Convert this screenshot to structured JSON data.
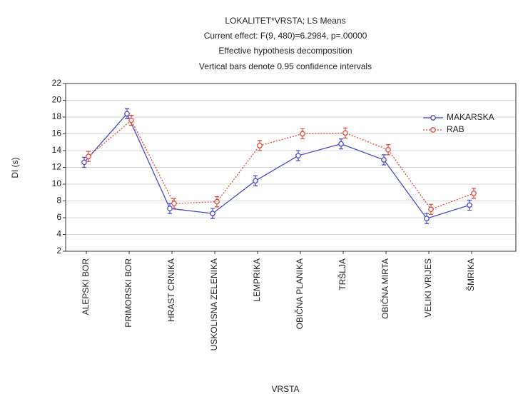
{
  "chart_data": {
    "type": "line",
    "title": "LOKALITET*VRSTA; LS Means",
    "subtitle": [
      "Current effect: F(9, 480)=6.2984, p=.00000",
      "Effective hypothesis decomposition",
      "Vertical bars denote 0.95 confidence intervals"
    ],
    "xlabel": "VRSTA",
    "ylabel": "DI (s)",
    "categories": [
      "ALEPSKI BOR",
      "PRIMORSKI BOR",
      "HRAST CRNIKA",
      "USKOLISNA ZELENIKA",
      "LEMPRIKA",
      "OBIČNA PLANIKA",
      "TRŠLJA",
      "OBIČNA MIRTA",
      "VELIKI VRIJES",
      "ŠMRIKA"
    ],
    "series": [
      {
        "name": "MAKARSKA",
        "color": "#4a4ac8",
        "dash": "solid",
        "values": [
          12.6,
          18.4,
          7.1,
          6.5,
          10.4,
          13.4,
          14.8,
          12.9,
          5.9,
          7.5
        ],
        "errors": [
          0.6,
          0.6,
          0.6,
          0.6,
          0.6,
          0.6,
          0.6,
          0.6,
          0.6,
          0.6
        ]
      },
      {
        "name": "RAB",
        "color": "#e04a3a",
        "dash": "dotted",
        "values": [
          13.3,
          17.6,
          7.7,
          7.9,
          14.6,
          16.0,
          16.1,
          14.1,
          7.0,
          8.9
        ],
        "errors": [
          0.6,
          0.6,
          0.6,
          0.6,
          0.6,
          0.6,
          0.6,
          0.6,
          0.6,
          0.6
        ]
      }
    ],
    "ylim": [
      2,
      22
    ],
    "yticks": [
      2,
      4,
      6,
      8,
      10,
      12,
      14,
      16,
      18,
      20,
      22
    ],
    "grid": true,
    "legend": "upper right"
  }
}
